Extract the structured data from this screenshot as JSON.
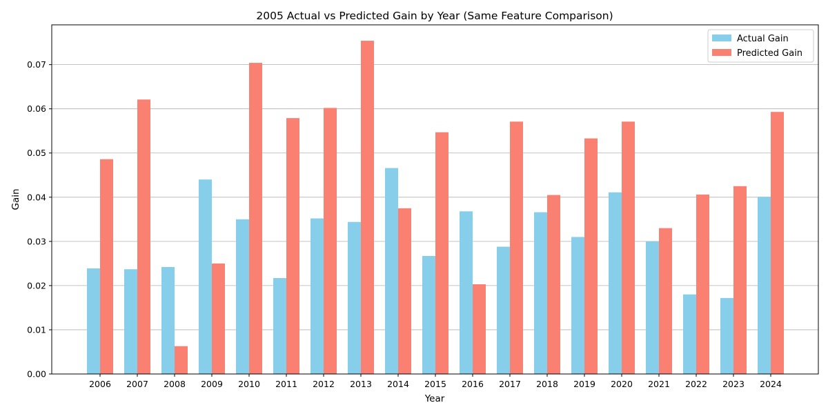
{
  "chart_data": {
    "type": "bar",
    "title": "2005 Actual vs Predicted Gain by Year (Same Feature Comparison)",
    "xlabel": "Year",
    "ylabel": "Gain",
    "ylim": [
      0,
      0.079
    ],
    "yticks": [
      0.0,
      0.01,
      0.02,
      0.03,
      0.04,
      0.05,
      0.06,
      0.07
    ],
    "ytick_labels": [
      "0.00",
      "0.01",
      "0.02",
      "0.03",
      "0.04",
      "0.05",
      "0.06",
      "0.07"
    ],
    "grid": "y",
    "legend": "top-right",
    "categories": [
      "2006",
      "2007",
      "2008",
      "2009",
      "2010",
      "2011",
      "2012",
      "2013",
      "2014",
      "2015",
      "2016",
      "2017",
      "2018",
      "2019",
      "2020",
      "2021",
      "2022",
      "2023",
      "2024"
    ],
    "series": [
      {
        "name": "Actual Gain",
        "color": "#87ceeb",
        "values": [
          0.0239,
          0.0237,
          0.0242,
          0.044,
          0.035,
          0.0217,
          0.0352,
          0.0344,
          0.0466,
          0.0267,
          0.0368,
          0.0288,
          0.0366,
          0.031,
          0.0411,
          0.03,
          0.018,
          0.0172,
          0.0401
        ]
      },
      {
        "name": "Predicted Gain",
        "color": "#fa8072",
        "values": [
          0.0486,
          0.0621,
          0.0063,
          0.025,
          0.0704,
          0.0579,
          0.0602,
          0.0754,
          0.0375,
          0.0547,
          0.0203,
          0.0571,
          0.0405,
          0.0533,
          0.0571,
          0.033,
          0.0406,
          0.0425,
          0.0593
        ]
      }
    ]
  }
}
